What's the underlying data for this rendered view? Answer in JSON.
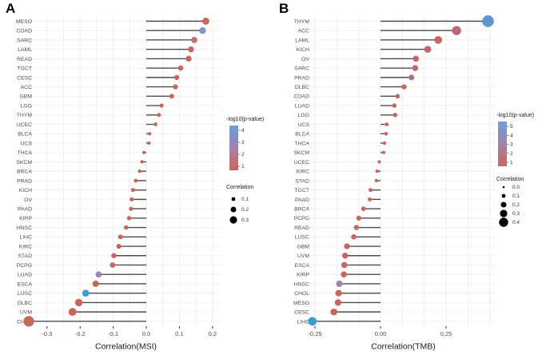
{
  "colors": {
    "dot_default": "#C8655C",
    "stem": "#4D4D4D",
    "grid": "#EBEBEB",
    "axis_text": "#4A4A4A",
    "label_text": "#4D4D4D",
    "legend_dot": "#000000",
    "gradient_top_blue": "#6FA0D8",
    "gradient": [
      "#6FA0D8",
      "#8191C6",
      "#A583AC",
      "#BE7180",
      "#C8655C"
    ]
  },
  "chart_data": [
    {
      "type": "lollipop",
      "panel_label": "A",
      "xlabel": "Correlation(MSI)",
      "x_ticks": [
        -0.3,
        -0.2,
        -0.1,
        0.0,
        0.1,
        0.2
      ],
      "x_tick_labels": [
        "-0.3",
        "-0.2",
        "-0.1",
        "0.0",
        "0.1",
        "0.2"
      ],
      "xlim": [
        -0.37,
        0.23
      ],
      "grid": true,
      "legend_color": {
        "title": "-log10(p-value)",
        "ticks": [
          "4",
          "3",
          "2",
          "1"
        ]
      },
      "legend_size": {
        "title": "Correlation",
        "ticks": [
          "0.1",
          "0.2",
          "0.3"
        ],
        "tick_values": [
          0.1,
          0.2,
          0.3
        ]
      },
      "points": [
        {
          "label": "MESO",
          "value": 0.18
        },
        {
          "label": "COAD",
          "value": 0.17,
          "color": "#8095CE"
        },
        {
          "label": "SARC",
          "value": 0.145,
          "color": "#B96F7D"
        },
        {
          "label": "LAML",
          "value": 0.135
        },
        {
          "label": "READ",
          "value": 0.128
        },
        {
          "label": "TGCT",
          "value": 0.104
        },
        {
          "label": "CESC",
          "value": 0.092
        },
        {
          "label": "ACC",
          "value": 0.088
        },
        {
          "label": "GBM",
          "value": 0.077
        },
        {
          "label": "LGG",
          "value": 0.046
        },
        {
          "label": "THYM",
          "value": 0.038
        },
        {
          "label": "UCEC",
          "value": 0.028
        },
        {
          "label": "BLCA",
          "value": 0.01
        },
        {
          "label": "UCS",
          "value": 0.008
        },
        {
          "label": "THCA",
          "value": -0.007
        },
        {
          "label": "SKCM",
          "value": -0.013
        },
        {
          "label": "BRCA",
          "value": -0.02
        },
        {
          "label": "PRAD",
          "value": -0.032
        },
        {
          "label": "KICH",
          "value": -0.04
        },
        {
          "label": "OV",
          "value": -0.044
        },
        {
          "label": "PAAD",
          "value": -0.046
        },
        {
          "label": "KIRP",
          "value": -0.052
        },
        {
          "label": "HNSC",
          "value": -0.061
        },
        {
          "label": "LIHC",
          "value": -0.078
        },
        {
          "label": "KIRC",
          "value": -0.083
        },
        {
          "label": "STAD",
          "value": -0.098
        },
        {
          "label": "PCPG",
          "value": -0.102
        },
        {
          "label": "LUAD",
          "value": -0.144,
          "color": "#9C87BD"
        },
        {
          "label": "ESCA",
          "value": -0.153
        },
        {
          "label": "LUSC",
          "value": -0.183,
          "color": "#3E9ED4"
        },
        {
          "label": "DLBC",
          "value": -0.204
        },
        {
          "label": "UVM",
          "value": -0.223
        },
        {
          "label": "CHOL",
          "value": -0.355
        }
      ]
    },
    {
      "type": "lollipop",
      "panel_label": "B",
      "xlabel": "Correlation(TMB)",
      "x_ticks": [
        -0.25,
        0.0,
        0.25
      ],
      "x_tick_labels": [
        "-0.25",
        "0.00",
        "0.25"
      ],
      "xlim": [
        -0.27,
        0.44
      ],
      "grid": true,
      "legend_color": {
        "title": "-log10(p-value)",
        "ticks": [
          "5",
          "4",
          "3",
          "2",
          "1"
        ]
      },
      "legend_size": {
        "title": "Correlation",
        "ticks": [
          "0.0",
          "0.1",
          "0.2",
          "0.3",
          "0.4"
        ],
        "tick_values": [
          0.0,
          0.1,
          0.2,
          0.3,
          0.4
        ]
      },
      "points": [
        {
          "label": "THYM",
          "value": 0.41,
          "color": "#5E97D0"
        },
        {
          "label": "ACC",
          "value": 0.29,
          "color": "#BC6B74"
        },
        {
          "label": "LAML",
          "value": 0.22
        },
        {
          "label": "KICH",
          "value": 0.18,
          "color": "#C06A6F"
        },
        {
          "label": "OV",
          "value": 0.135
        },
        {
          "label": "SARC",
          "value": 0.132
        },
        {
          "label": "PRAD",
          "value": 0.118,
          "color": "#AA6C85"
        },
        {
          "label": "DLBC",
          "value": 0.09
        },
        {
          "label": "COAD",
          "value": 0.065
        },
        {
          "label": "LUAD",
          "value": 0.053
        },
        {
          "label": "LGG",
          "value": 0.056
        },
        {
          "label": "UCS",
          "value": 0.024
        },
        {
          "label": "BLCA",
          "value": 0.021
        },
        {
          "label": "THCA",
          "value": 0.015
        },
        {
          "label": "SKCM",
          "value": 0.012
        },
        {
          "label": "UCEC",
          "value": -0.005
        },
        {
          "label": "KIRC",
          "value": -0.013
        },
        {
          "label": "STAD",
          "value": -0.016
        },
        {
          "label": "TGCT",
          "value": -0.038
        },
        {
          "label": "PAAD",
          "value": -0.041
        },
        {
          "label": "BRCA",
          "value": -0.065
        },
        {
          "label": "PCPG",
          "value": -0.083
        },
        {
          "label": "READ",
          "value": -0.092
        },
        {
          "label": "LUSC",
          "value": -0.102
        },
        {
          "label": "GBM",
          "value": -0.128
        },
        {
          "label": "UVM",
          "value": -0.135
        },
        {
          "label": "ESCA",
          "value": -0.138
        },
        {
          "label": "KIRP",
          "value": -0.14
        },
        {
          "label": "HNSC",
          "value": -0.157,
          "color": "#9C84AC"
        },
        {
          "label": "CHOL",
          "value": -0.16
        },
        {
          "label": "MESO",
          "value": -0.162
        },
        {
          "label": "CESC",
          "value": -0.178
        },
        {
          "label": "LIHC",
          "value": -0.26,
          "color": "#3E9ED4"
        }
      ]
    }
  ]
}
